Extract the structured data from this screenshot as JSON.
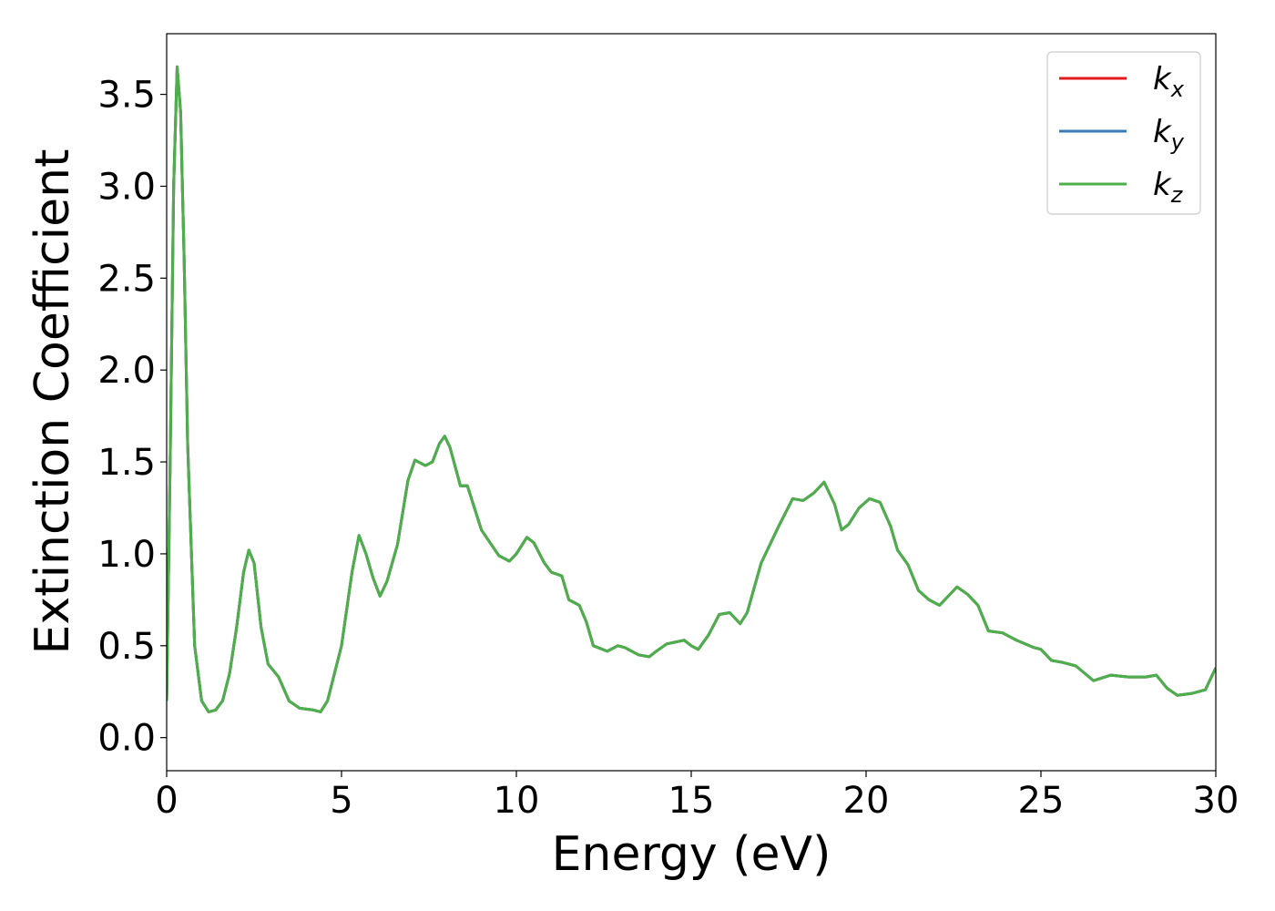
{
  "chart_data": {
    "type": "line",
    "xlabel": "Energy (eV)",
    "ylabel": "Extinction Coefficient",
    "x": [
      0,
      0.1,
      0.2,
      0.3,
      0.4,
      0.5,
      0.6,
      0.8,
      1.0,
      1.2,
      1.4,
      1.6,
      1.8,
      2.0,
      2.2,
      2.35,
      2.5,
      2.7,
      2.9,
      3.2,
      3.5,
      3.8,
      4.2,
      4.4,
      4.6,
      5.0,
      5.3,
      5.5,
      5.7,
      5.9,
      6.1,
      6.3,
      6.6,
      6.9,
      7.1,
      7.4,
      7.6,
      7.8,
      7.95,
      8.1,
      8.4,
      8.6,
      8.8,
      9.0,
      9.5,
      9.8,
      10.0,
      10.3,
      10.5,
      10.8,
      11.0,
      11.3,
      11.5,
      11.8,
      12.0,
      12.2,
      12.6,
      12.9,
      13.1,
      13.5,
      13.8,
      14.0,
      14.3,
      14.8,
      15.0,
      15.2,
      15.5,
      15.8,
      16.1,
      16.4,
      16.6,
      17.0,
      17.5,
      17.9,
      18.2,
      18.5,
      18.8,
      19.1,
      19.3,
      19.5,
      19.8,
      20.1,
      20.4,
      20.7,
      20.9,
      21.2,
      21.5,
      21.8,
      22.1,
      22.3,
      22.6,
      22.9,
      23.2,
      23.5,
      23.9,
      24.3,
      24.8,
      25.0,
      25.3,
      25.6,
      26.0,
      26.5,
      27.0,
      27.5,
      28.0,
      28.3,
      28.6,
      28.9,
      29.3,
      29.7,
      30.0
    ],
    "series": [
      {
        "name": "kx",
        "color": "#e41a1c",
        "values": [
          0.2,
          1.5,
          3.0,
          3.65,
          3.4,
          2.6,
          1.6,
          0.5,
          0.2,
          0.14,
          0.15,
          0.2,
          0.35,
          0.6,
          0.9,
          1.02,
          0.95,
          0.6,
          0.4,
          0.33,
          0.2,
          0.16,
          0.15,
          0.14,
          0.2,
          0.5,
          0.9,
          1.1,
          1.0,
          0.87,
          0.77,
          0.85,
          1.05,
          1.4,
          1.51,
          1.48,
          1.5,
          1.6,
          1.64,
          1.58,
          1.37,
          1.37,
          1.25,
          1.13,
          0.99,
          0.96,
          1.0,
          1.09,
          1.06,
          0.95,
          0.9,
          0.88,
          0.75,
          0.72,
          0.63,
          0.5,
          0.47,
          0.5,
          0.49,
          0.45,
          0.44,
          0.47,
          0.51,
          0.53,
          0.5,
          0.48,
          0.56,
          0.67,
          0.68,
          0.62,
          0.68,
          0.95,
          1.15,
          1.3,
          1.29,
          1.33,
          1.39,
          1.27,
          1.13,
          1.16,
          1.25,
          1.3,
          1.28,
          1.15,
          1.02,
          0.94,
          0.8,
          0.75,
          0.72,
          0.76,
          0.82,
          0.78,
          0.72,
          0.58,
          0.57,
          0.53,
          0.49,
          0.48,
          0.42,
          0.41,
          0.39,
          0.31,
          0.34,
          0.33,
          0.33,
          0.34,
          0.27,
          0.23,
          0.24,
          0.26,
          0.38
        ]
      },
      {
        "name": "ky",
        "color": "#377eb8",
        "values": [
          0.2,
          1.5,
          3.0,
          3.65,
          3.4,
          2.6,
          1.6,
          0.5,
          0.2,
          0.14,
          0.15,
          0.2,
          0.35,
          0.6,
          0.9,
          1.02,
          0.95,
          0.6,
          0.4,
          0.33,
          0.2,
          0.16,
          0.15,
          0.14,
          0.2,
          0.5,
          0.9,
          1.1,
          1.0,
          0.87,
          0.77,
          0.85,
          1.05,
          1.4,
          1.51,
          1.48,
          1.5,
          1.6,
          1.64,
          1.58,
          1.37,
          1.37,
          1.25,
          1.13,
          0.99,
          0.96,
          1.0,
          1.09,
          1.06,
          0.95,
          0.9,
          0.88,
          0.75,
          0.72,
          0.63,
          0.5,
          0.47,
          0.5,
          0.49,
          0.45,
          0.44,
          0.47,
          0.51,
          0.53,
          0.5,
          0.48,
          0.56,
          0.67,
          0.68,
          0.62,
          0.68,
          0.95,
          1.15,
          1.3,
          1.29,
          1.33,
          1.39,
          1.27,
          1.13,
          1.16,
          1.25,
          1.3,
          1.28,
          1.15,
          1.02,
          0.94,
          0.8,
          0.75,
          0.72,
          0.76,
          0.82,
          0.78,
          0.72,
          0.58,
          0.57,
          0.53,
          0.49,
          0.48,
          0.42,
          0.41,
          0.39,
          0.31,
          0.34,
          0.33,
          0.33,
          0.34,
          0.27,
          0.23,
          0.24,
          0.26,
          0.38
        ]
      },
      {
        "name": "kz",
        "color": "#4daf4a",
        "values": [
          0.2,
          1.5,
          3.0,
          3.65,
          3.4,
          2.6,
          1.6,
          0.5,
          0.2,
          0.14,
          0.15,
          0.2,
          0.35,
          0.6,
          0.9,
          1.02,
          0.95,
          0.6,
          0.4,
          0.33,
          0.2,
          0.16,
          0.15,
          0.14,
          0.2,
          0.5,
          0.9,
          1.1,
          1.0,
          0.87,
          0.77,
          0.85,
          1.05,
          1.4,
          1.51,
          1.48,
          1.5,
          1.6,
          1.64,
          1.58,
          1.37,
          1.37,
          1.25,
          1.13,
          0.99,
          0.96,
          1.0,
          1.09,
          1.06,
          0.95,
          0.9,
          0.88,
          0.75,
          0.72,
          0.63,
          0.5,
          0.47,
          0.5,
          0.49,
          0.45,
          0.44,
          0.47,
          0.51,
          0.53,
          0.5,
          0.48,
          0.56,
          0.67,
          0.68,
          0.62,
          0.68,
          0.95,
          1.15,
          1.3,
          1.29,
          1.33,
          1.39,
          1.27,
          1.13,
          1.16,
          1.25,
          1.3,
          1.28,
          1.15,
          1.02,
          0.94,
          0.8,
          0.75,
          0.72,
          0.76,
          0.82,
          0.78,
          0.72,
          0.58,
          0.57,
          0.53,
          0.49,
          0.48,
          0.42,
          0.41,
          0.39,
          0.31,
          0.34,
          0.33,
          0.33,
          0.34,
          0.27,
          0.23,
          0.24,
          0.26,
          0.38
        ]
      }
    ],
    "xlim": [
      0,
      30
    ],
    "xticks": [
      0,
      5,
      10,
      15,
      20,
      25,
      30
    ],
    "ylim": [
      -0.18,
      3.83
    ],
    "yticks": [
      {
        "value": 0,
        "label": "0.0"
      },
      0.5,
      {
        "value": 1,
        "label": "1.0"
      },
      1.5,
      {
        "value": 2,
        "label": "2.0"
      },
      2.5,
      {
        "value": 3,
        "label": "3.0"
      },
      3.5
    ],
    "legend": "upper right",
    "grid": false
  }
}
